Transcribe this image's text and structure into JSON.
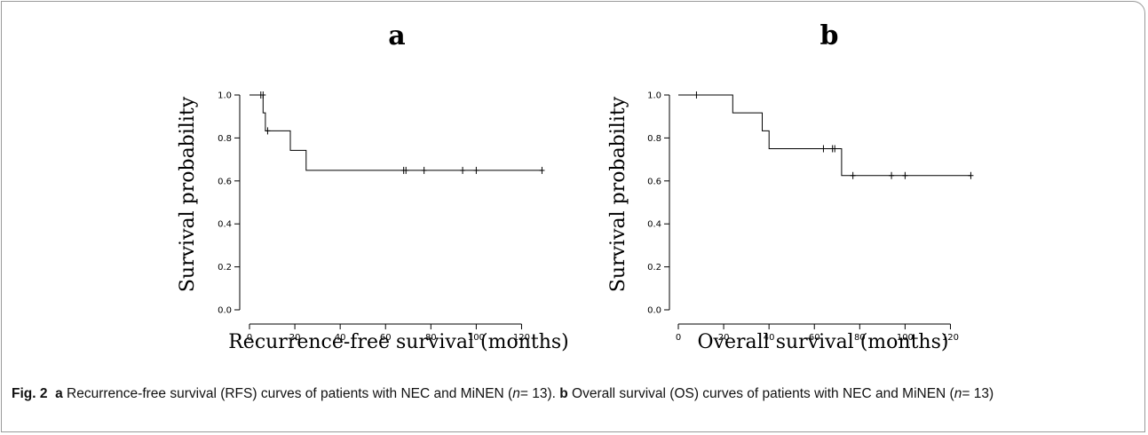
{
  "chart_data": [
    {
      "type": "line",
      "panel_label": "a",
      "xlabel": "Recurrence-free survival (months)",
      "ylabel": "Survival probability",
      "xlim": [
        0,
        130
      ],
      "ylim": [
        0,
        1
      ],
      "xticks": [
        "0",
        "20",
        "40",
        "60",
        "80",
        "100",
        "120"
      ],
      "yticks": [
        "0.0",
        "0.2",
        "0.4",
        "0.6",
        "0.8",
        "1.0"
      ],
      "step_curve": {
        "x": [
          0,
          6,
          6,
          7,
          7,
          18,
          18,
          25,
          25,
          129
        ],
        "y": [
          1.0,
          1.0,
          0.917,
          0.917,
          0.833,
          0.833,
          0.742,
          0.742,
          0.649,
          0.649
        ]
      },
      "censor_marks": [
        {
          "x": 5,
          "y": 1.0
        },
        {
          "x": 6,
          "y": 1.0
        },
        {
          "x": 8,
          "y": 0.833
        },
        {
          "x": 68,
          "y": 0.649
        },
        {
          "x": 69,
          "y": 0.649
        },
        {
          "x": 77,
          "y": 0.649
        },
        {
          "x": 94,
          "y": 0.649
        },
        {
          "x": 100,
          "y": 0.649
        },
        {
          "x": 129,
          "y": 0.649
        }
      ]
    },
    {
      "type": "line",
      "panel_label": "b",
      "xlabel": "Overall survival (months)",
      "ylabel": "Survival probability",
      "xlim": [
        0,
        130
      ],
      "ylim": [
        0,
        1
      ],
      "xticks": [
        "0",
        "20",
        "40",
        "60",
        "80",
        "100",
        "120"
      ],
      "yticks": [
        "0.0",
        "0.2",
        "0.4",
        "0.6",
        "0.8",
        "1.0"
      ],
      "step_curve": {
        "x": [
          0,
          24,
          24,
          37,
          37,
          40,
          40,
          72,
          72,
          129
        ],
        "y": [
          1.0,
          1.0,
          0.917,
          0.917,
          0.833,
          0.833,
          0.75,
          0.75,
          0.625,
          0.625
        ]
      },
      "censor_marks": [
        {
          "x": 8,
          "y": 1.0
        },
        {
          "x": 64,
          "y": 0.75
        },
        {
          "x": 68,
          "y": 0.75
        },
        {
          "x": 69,
          "y": 0.75
        },
        {
          "x": 77,
          "y": 0.625
        },
        {
          "x": 94,
          "y": 0.625
        },
        {
          "x": 100,
          "y": 0.625
        },
        {
          "x": 129,
          "y": 0.625
        }
      ]
    }
  ],
  "caption": {
    "fig_label": "Fig. 2",
    "a_label": "a",
    "a_text_1": "Recurrence-free survival (RFS) curves of patients with NEC and MiNEN (",
    "n_var": "n",
    "a_text_2": "= 13).",
    "b_label": "b",
    "b_text_1": "Overall survival (OS) curves of patients with NEC and MiNEN (",
    "b_text_2": "= 13)"
  }
}
